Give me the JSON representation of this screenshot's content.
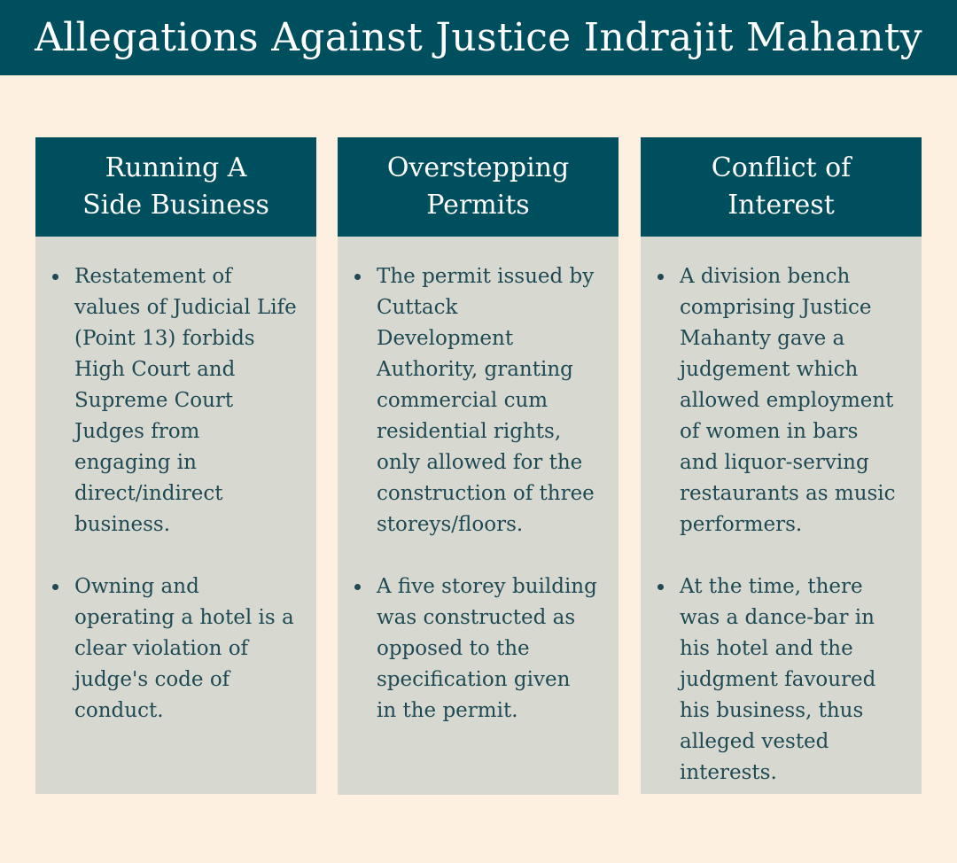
{
  "title": "Allegations Against Justice Indrajit Mahanty",
  "columns": [
    {
      "heading": "Running A\nSide Business",
      "points": [
        "Restatement  of\nvalues of Judicial Life\n(Point 13)  forbids\nHigh Court and\nSupreme Court\nJudges from\nengaging in\ndirect/indirect\nbusiness.",
        "Owning and\noperating a hotel is a\nclear violation of\njudge's code of\nconduct."
      ]
    },
    {
      "heading": "Overstepping\nPermits",
      "points": [
        "The permit issued by\nCuttack\nDevelopment\nAuthority, granting\ncommercial cum\nresidential rights,\nonly allowed for the\nconstruction of three\nstoreys/floors.",
        "A five storey building\nwas constructed as\nopposed to the\nspecification given\nin the permit."
      ]
    },
    {
      "heading": "Conflict of\nInterest",
      "points": [
        "A division bench\ncomprising Justice\nMahanty gave a\njudgement which\nallowed employment\nof women in bars\nand liquor-serving\nrestaurants as music\nperformers.",
        "At the time, there\nwas a dance-bar in\nhis hotel and the\njudgment favoured\nhis business, thus\nalleged vested\ninterests."
      ]
    }
  ]
}
